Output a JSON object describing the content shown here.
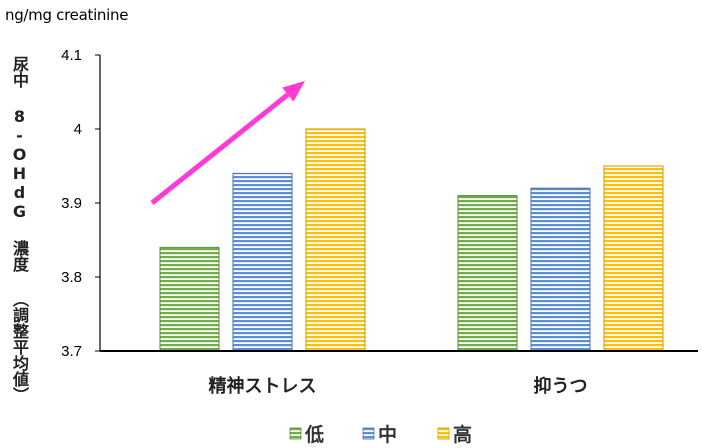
{
  "chart_data": {
    "type": "bar",
    "unit_label": "ng/mg creatinine",
    "ylabel": "尿中 8-OHdG 濃度 （調整平均値）",
    "categories": [
      "精神ストレス",
      "抑うつ"
    ],
    "series": [
      {
        "name": "低",
        "values": [
          3.84,
          3.91
        ],
        "color": "#70ad47"
      },
      {
        "name": "中",
        "values": [
          3.94,
          3.92
        ],
        "color": "#5b8fd5"
      },
      {
        "name": "高",
        "values": [
          4.0,
          3.95
        ],
        "color": "#ffc000"
      }
    ],
    "y_ticks": [
      "3.7",
      "3.8",
      "3.9",
      "4",
      "4.1"
    ],
    "ylim": [
      3.7,
      4.1
    ],
    "grid": false,
    "bar_pattern": "horizontal-stripes",
    "legend_position": "bottom",
    "annotation": {
      "type": "arrow",
      "color": "#ff3bd4",
      "from": {
        "category": 0,
        "value": 3.9
      },
      "to": {
        "category": 0,
        "value": 4.065
      }
    }
  }
}
